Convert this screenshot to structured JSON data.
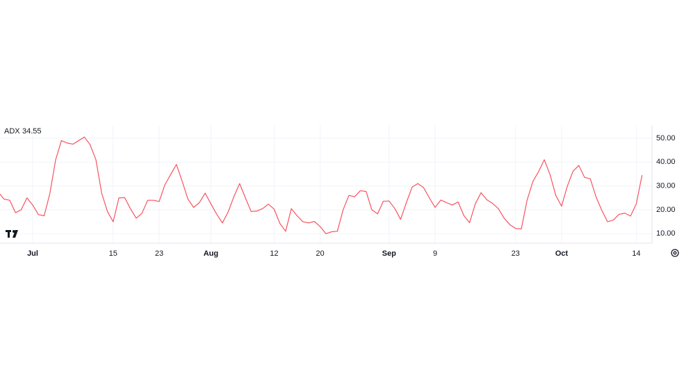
{
  "chart_data": {
    "type": "line",
    "legend_position": "top-left",
    "grid": true,
    "x": [
      "Jun 25",
      "Jun 26",
      "Jun 27",
      "Jun 28",
      "Jun 29",
      "Jun 30",
      "Jul 1",
      "Jul 2",
      "Jul 3",
      "Jul 4",
      "Jul 5",
      "Jul 6",
      "Jul 7",
      "Jul 8",
      "Jul 9",
      "Jul 10",
      "Jul 11",
      "Jul 12",
      "Jul 13",
      "Jul 14",
      "Jul 15",
      "Jul 16",
      "Jul 17",
      "Jul 18",
      "Jul 19",
      "Jul 20",
      "Jul 21",
      "Jul 22",
      "Jul 23",
      "Jul 24",
      "Jul 25",
      "Jul 26",
      "Jul 27",
      "Jul 28",
      "Jul 29",
      "Jul 30",
      "Jul 31",
      "Aug 1",
      "Aug 2",
      "Aug 3",
      "Aug 4",
      "Aug 5",
      "Aug 6",
      "Aug 7",
      "Aug 8",
      "Aug 9",
      "Aug 10",
      "Aug 11",
      "Aug 12",
      "Aug 13",
      "Aug 14",
      "Aug 15",
      "Aug 16",
      "Aug 17",
      "Aug 18",
      "Aug 19",
      "Aug 20",
      "Aug 21",
      "Aug 22",
      "Aug 23",
      "Aug 24",
      "Aug 25",
      "Aug 26",
      "Aug 27",
      "Aug 28",
      "Aug 29",
      "Aug 30",
      "Aug 31",
      "Sep 1",
      "Sep 2",
      "Sep 3",
      "Sep 4",
      "Sep 5",
      "Sep 6",
      "Sep 7",
      "Sep 8",
      "Sep 9",
      "Sep 10",
      "Sep 11",
      "Sep 12",
      "Sep 13",
      "Sep 14",
      "Sep 15",
      "Sep 16",
      "Sep 17",
      "Sep 18",
      "Sep 19",
      "Sep 20",
      "Sep 21",
      "Sep 22",
      "Sep 23",
      "Sep 24",
      "Sep 25",
      "Sep 26",
      "Sep 27",
      "Sep 28",
      "Sep 29",
      "Sep 30",
      "Oct 1",
      "Oct 2",
      "Oct 3",
      "Oct 4",
      "Oct 5",
      "Oct 6",
      "Oct 7",
      "Oct 8",
      "Oct 9",
      "Oct 10",
      "Oct 11",
      "Oct 12",
      "Oct 13",
      "Oct 14",
      "Oct 15"
    ],
    "series": [
      {
        "name": "ADX",
        "color": "#f7525f",
        "values": [
          27.5,
          24.5,
          24,
          18.8,
          20,
          25,
          22,
          18,
          17.5,
          27,
          41,
          49,
          48,
          47.5,
          49,
          50.5,
          47.2,
          41,
          27,
          19.3,
          15,
          25,
          25.1,
          20.5,
          16.5,
          18.5,
          24,
          24,
          23.5,
          30.5,
          34.8,
          39,
          32,
          24.5,
          21,
          23,
          27,
          22.5,
          18.2,
          14.5,
          19.1,
          25.5,
          31,
          25,
          19.3,
          19.5,
          20.5,
          22.4,
          20.3,
          14.3,
          11,
          20.5,
          17.5,
          15,
          14.5,
          15.1,
          13,
          10,
          10.8,
          11,
          20,
          26,
          25.5,
          28,
          27.7,
          20,
          18.3,
          23.6,
          23.7,
          20.5,
          16,
          23,
          29.5,
          31,
          29.3,
          25,
          21,
          24.1,
          23,
          22,
          23.3,
          17.6,
          14.6,
          22.5,
          27.2,
          24.2,
          22.7,
          20.5,
          16.5,
          13.8,
          12.2,
          12,
          24,
          31.8,
          36,
          41,
          34.7,
          26,
          21.5,
          29.9,
          36.2,
          38.6,
          33.6,
          33,
          25.4,
          19.8,
          15,
          15.7,
          18.1,
          18.6,
          17.4,
          22.5,
          34.55
        ]
      }
    ],
    "ylim": [
      6,
      55.5
    ],
    "yticks": [
      {
        "value": 10,
        "label": "10.00"
      },
      {
        "value": 20,
        "label": "20.00"
      },
      {
        "value": 30,
        "label": "30.00"
      },
      {
        "value": 40,
        "label": "40.00"
      },
      {
        "value": 50,
        "label": "50.00"
      }
    ],
    "xticks": [
      {
        "value": "Jul 1",
        "label": "Jul"
      },
      {
        "value": "Jul 15",
        "label": "15"
      },
      {
        "value": "Jul 23",
        "label": "23"
      },
      {
        "value": "Aug 1",
        "label": "Aug"
      },
      {
        "value": "Aug 12",
        "label": "12"
      },
      {
        "value": "Aug 20",
        "label": "20"
      },
      {
        "value": "Sep 1",
        "label": "Sep"
      },
      {
        "value": "Sep 9",
        "label": "9"
      },
      {
        "value": "Sep 23",
        "label": "23"
      },
      {
        "value": "Oct 1",
        "label": "Oct"
      },
      {
        "value": "Oct 14",
        "label": "14"
      }
    ]
  }
}
